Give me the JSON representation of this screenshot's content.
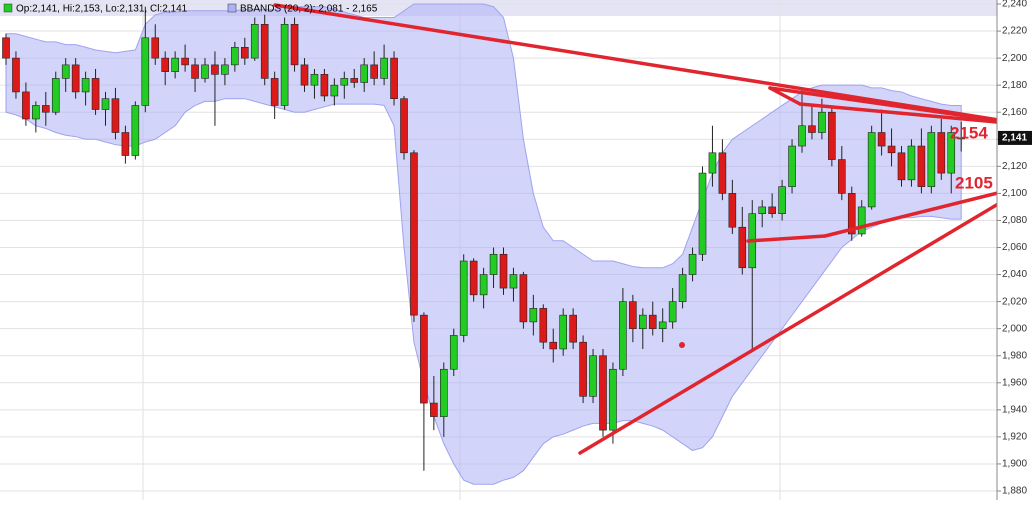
{
  "chart_data": {
    "type": "candlestick",
    "ylim": [
      1880,
      2240
    ],
    "yticks": [
      {
        "value": 1880,
        "label": "1,880"
      },
      {
        "value": 1900,
        "label": "1,900"
      },
      {
        "value": 1920,
        "label": "1,920"
      },
      {
        "value": 1940,
        "label": "1,940"
      },
      {
        "value": 1960,
        "label": "1,960"
      },
      {
        "value": 1980,
        "label": "1,980"
      },
      {
        "value": 2000,
        "label": "2,000"
      },
      {
        "value": 2020,
        "label": "2,020"
      },
      {
        "value": 2040,
        "label": "2,040"
      },
      {
        "value": 2060,
        "label": "2,060"
      },
      {
        "value": 2080,
        "label": "2,080"
      },
      {
        "value": 2100,
        "label": "2,100"
      },
      {
        "value": 2120,
        "label": "2,120"
      },
      {
        "value": 2140,
        "label": "2,140"
      },
      {
        "value": 2160,
        "label": "2,160"
      },
      {
        "value": 2180,
        "label": "2,180"
      },
      {
        "value": 2200,
        "label": "2,200"
      },
      {
        "value": 2220,
        "label": "2,220"
      },
      {
        "value": 2240,
        "label": "2,240"
      }
    ],
    "grid": true,
    "series": [
      {
        "name": "Op:2,141, Hi:2,153, Lo:2,131, Cl:2,141",
        "up_color": "#22cc22",
        "down_color": "#dd1a1a",
        "open": [
          2215,
          2200,
          2175,
          2155,
          2165,
          2160,
          2185,
          2195,
          2175,
          2185,
          2162,
          2170,
          2145,
          2128,
          2165,
          2215,
          2200,
          2190,
          2200,
          2195,
          2185,
          2195,
          2188,
          2195,
          2208,
          2200,
          2225,
          2185,
          2165,
          2225,
          2195,
          2180,
          2188,
          2172,
          2180,
          2185,
          2182,
          2195,
          2185,
          2200,
          2170,
          2130,
          2010,
          1945,
          1935,
          1970,
          1995,
          2050,
          2025,
          2040,
          2055,
          2030,
          2040,
          2005,
          2015,
          1990,
          1985,
          2010,
          1990,
          1950,
          1980,
          1925,
          1970,
          2020,
          2000,
          2010,
          2000,
          2005,
          2020,
          2040,
          2055,
          2115,
          2130,
          2100,
          2075,
          2045,
          2085,
          2090,
          2085,
          2105,
          2135,
          2150,
          2145,
          2160,
          2125,
          2100,
          2070,
          2090,
          2145,
          2135,
          2130,
          2110,
          2135,
          2105,
          2145,
          2115,
          2141
        ],
        "high": [
          2218,
          2205,
          2182,
          2168,
          2175,
          2190,
          2200,
          2200,
          2190,
          2192,
          2175,
          2178,
          2150,
          2168,
          2238,
          2225,
          2205,
          2205,
          2210,
          2200,
          2200,
          2205,
          2200,
          2212,
          2215,
          2230,
          2232,
          2190,
          2230,
          2230,
          2200,
          2192,
          2192,
          2185,
          2190,
          2192,
          2200,
          2205,
          2210,
          2205,
          2172,
          2132,
          2012,
          1965,
          1975,
          2000,
          2055,
          2052,
          2045,
          2060,
          2060,
          2045,
          2042,
          2025,
          2018,
          2000,
          2015,
          2015,
          1995,
          1985,
          1985,
          1975,
          2030,
          2025,
          2015,
          2020,
          2015,
          2030,
          2045,
          2060,
          2120,
          2150,
          2140,
          2110,
          2090,
          2095,
          2095,
          2100,
          2110,
          2140,
          2178,
          2165,
          2170,
          2165,
          2135,
          2105,
          2095,
          2150,
          2162,
          2148,
          2135,
          2140,
          2148,
          2150,
          2155,
          2150,
          2153
        ],
        "low": [
          2195,
          2170,
          2150,
          2145,
          2150,
          2158,
          2175,
          2170,
          2165,
          2158,
          2150,
          2140,
          2122,
          2125,
          2160,
          2195,
          2180,
          2185,
          2190,
          2175,
          2182,
          2150,
          2180,
          2190,
          2195,
          2198,
          2180,
          2155,
          2162,
          2190,
          2175,
          2170,
          2168,
          2165,
          2170,
          2178,
          2175,
          2180,
          2180,
          2165,
          2125,
          2005,
          1895,
          1925,
          1920,
          1965,
          1990,
          2020,
          2015,
          2030,
          2025,
          2020,
          2000,
          1995,
          1985,
          1975,
          1980,
          1985,
          1945,
          1945,
          1920,
          1915,
          1965,
          1990,
          1985,
          1995,
          1990,
          2000,
          2015,
          2035,
          2050,
          2105,
          2095,
          2070,
          2040,
          1985,
          2075,
          2082,
          2080,
          2100,
          2130,
          2140,
          2140,
          2120,
          2095,
          2065,
          2068,
          2088,
          2128,
          2120,
          2105,
          2105,
          2100,
          2100,
          2110,
          2100,
          2131
        ],
        "close": [
          2200,
          2175,
          2155,
          2165,
          2160,
          2185,
          2195,
          2175,
          2185,
          2162,
          2170,
          2145,
          2128,
          2165,
          2215,
          2200,
          2190,
          2200,
          2195,
          2185,
          2195,
          2188,
          2195,
          2208,
          2200,
          2225,
          2185,
          2165,
          2225,
          2195,
          2180,
          2188,
          2172,
          2180,
          2185,
          2182,
          2195,
          2185,
          2200,
          2170,
          2130,
          2010,
          1945,
          1935,
          1970,
          1995,
          2050,
          2025,
          2040,
          2055,
          2030,
          2040,
          2005,
          2015,
          1990,
          1985,
          2010,
          1990,
          1950,
          1980,
          1925,
          1970,
          2020,
          2000,
          2010,
          2000,
          2005,
          2020,
          2040,
          2055,
          2115,
          2130,
          2100,
          2075,
          2045,
          2085,
          2090,
          2085,
          2105,
          2135,
          2150,
          2145,
          2160,
          2125,
          2100,
          2070,
          2090,
          2145,
          2135,
          2130,
          2110,
          2135,
          2105,
          2145,
          2115,
          2145,
          2141
        ]
      }
    ],
    "bollinger": {
      "name": "BBANDS (20, 2): 2,081 - 2,165",
      "color": "#aeb0f5",
      "upper": [
        2218,
        2218,
        2216,
        2214,
        2212,
        2212,
        2210,
        2210,
        2208,
        2206,
        2205,
        2204,
        2205,
        2206,
        2225,
        2232,
        2234,
        2234,
        2235,
        2235,
        2235,
        2235,
        2235,
        2235,
        2236,
        2236,
        2236,
        2236,
        2238,
        2238,
        2238,
        2238,
        2238,
        2236,
        2234,
        2232,
        2230,
        2230,
        2230,
        2230,
        2235,
        2240,
        2240,
        2240,
        2240,
        2240,
        2240,
        2240,
        2240,
        2238,
        2230,
        2200,
        2140,
        2100,
        2075,
        2065,
        2065,
        2060,
        2055,
        2050,
        2050,
        2050,
        2048,
        2046,
        2045,
        2045,
        2045,
        2048,
        2055,
        2075,
        2095,
        2115,
        2130,
        2140,
        2145,
        2150,
        2155,
        2160,
        2165,
        2170,
        2175,
        2178,
        2180,
        2180,
        2180,
        2180,
        2180,
        2178,
        2178,
        2176,
        2175,
        2172,
        2170,
        2168,
        2166,
        2165,
        2165
      ],
      "lower": [
        2160,
        2158,
        2155,
        2150,
        2148,
        2145,
        2143,
        2142,
        2140,
        2140,
        2138,
        2136,
        2135,
        2135,
        2138,
        2140,
        2145,
        2150,
        2160,
        2165,
        2168,
        2168,
        2170,
        2170,
        2170,
        2168,
        2166,
        2164,
        2162,
        2160,
        2160,
        2162,
        2164,
        2166,
        2166,
        2166,
        2166,
        2166,
        2165,
        2150,
        2060,
        1990,
        1960,
        1935,
        1915,
        1900,
        1888,
        1885,
        1885,
        1885,
        1888,
        1890,
        1895,
        1905,
        1915,
        1920,
        1922,
        1925,
        1928,
        1930,
        1930,
        1930,
        1932,
        1932,
        1930,
        1928,
        1925,
        1920,
        1915,
        1910,
        1912,
        1920,
        1935,
        1950,
        1960,
        1970,
        1980,
        1990,
        2000,
        2010,
        2020,
        2030,
        2040,
        2050,
        2060,
        2066,
        2072,
        2075,
        2078,
        2080,
        2082,
        2082,
        2083,
        2083,
        2082,
        2081,
        2081
      ]
    },
    "last_price": {
      "value": 2141,
      "label": "2,141"
    },
    "annotations": [
      "2154",
      "2105"
    ]
  }
}
